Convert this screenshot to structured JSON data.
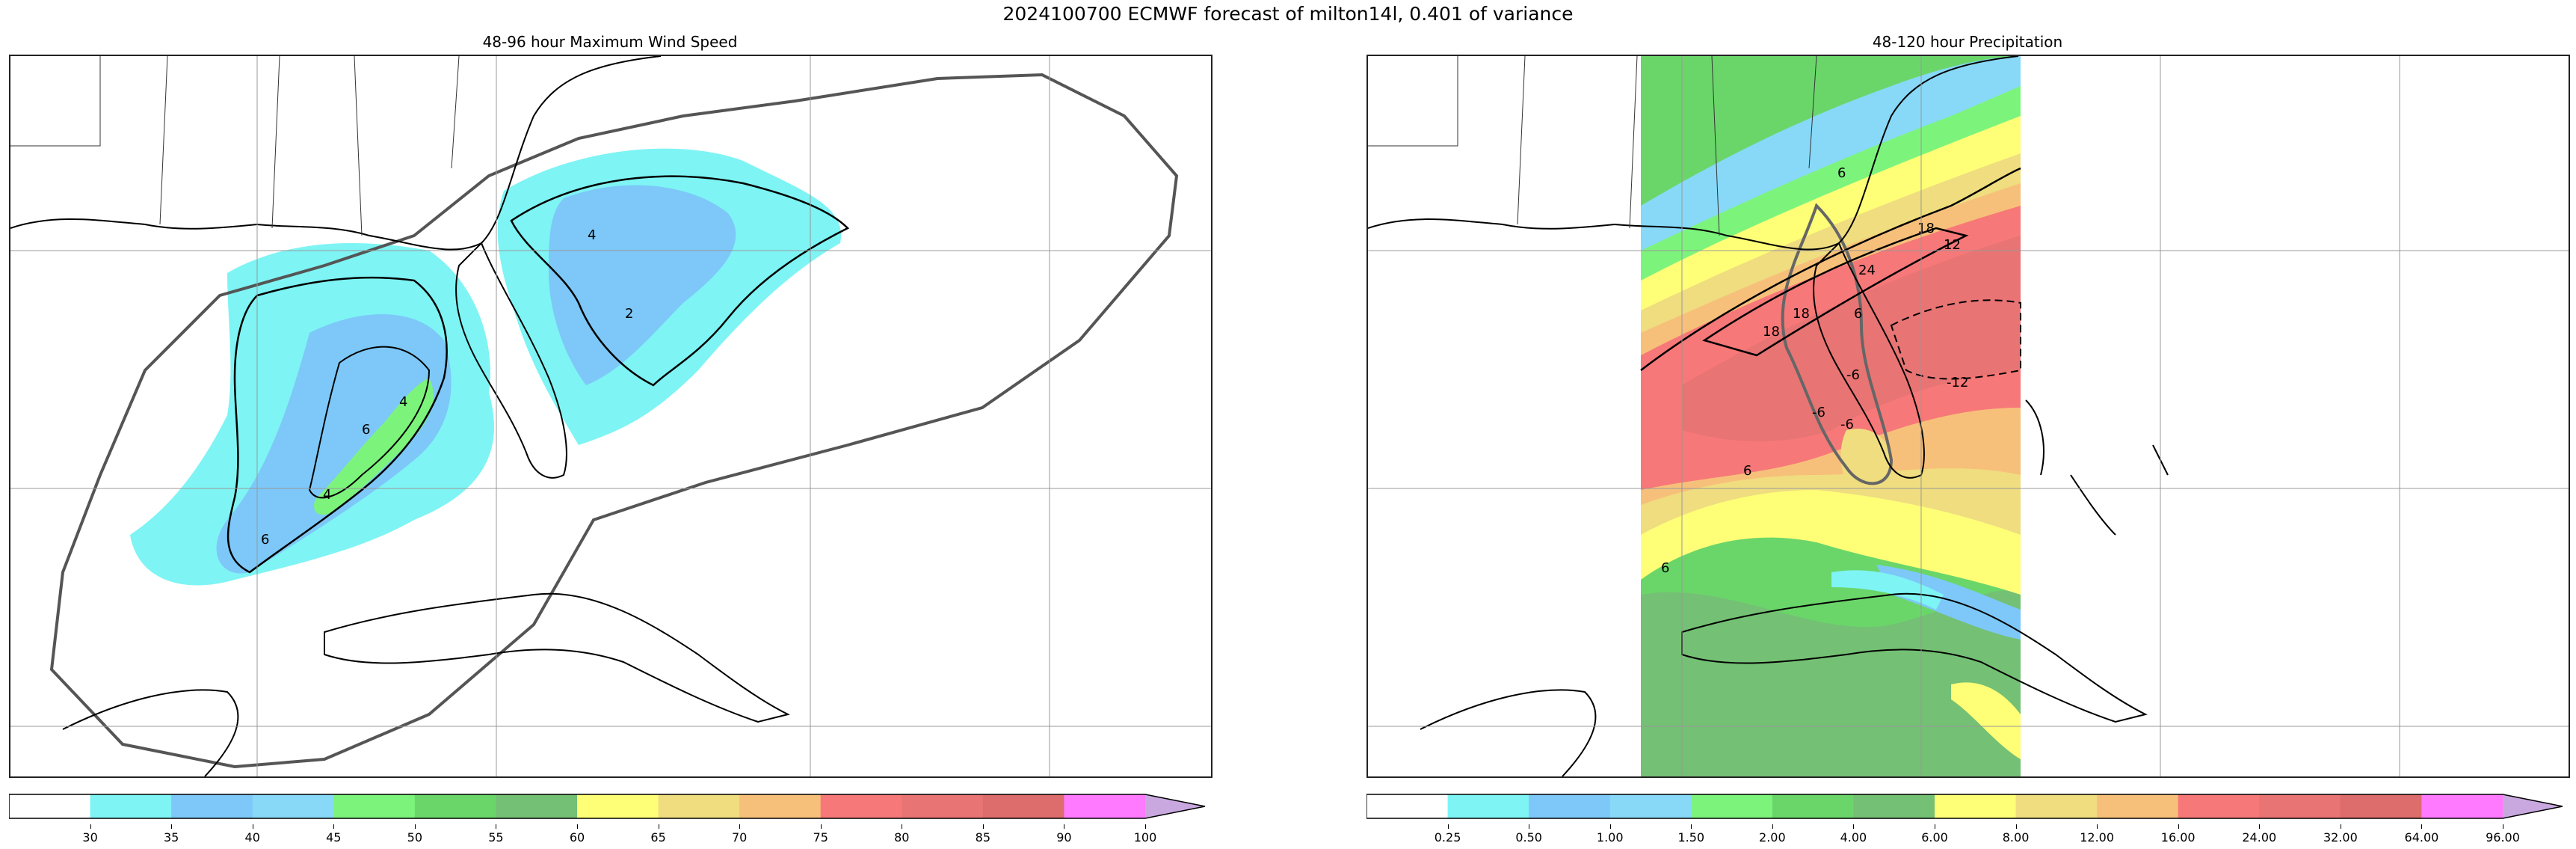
{
  "title": "2024100700 ECMWF forecast of milton14l, 0.401 of variance",
  "panels": {
    "left": {
      "title": "48-96 hour Maximum Wind Speed",
      "contour_labels": [
        "4",
        "2",
        "4",
        "6",
        "4",
        "6"
      ]
    },
    "right": {
      "title": "48-120 hour Precipitation",
      "contour_labels": [
        "6",
        "18",
        "12",
        "24",
        "18",
        "18",
        "6",
        "-12",
        "-6",
        "6",
        "-6",
        "6",
        "-6"
      ]
    }
  },
  "colorbars": {
    "wind": {
      "ticks": [
        "30",
        "35",
        "40",
        "45",
        "50",
        "55",
        "60",
        "65",
        "70",
        "75",
        "80",
        "85",
        "90",
        "100"
      ],
      "colors": [
        "#ffffff",
        "#7ef4f4",
        "#7dc8f8",
        "#87d9f7",
        "#7cf47c",
        "#6ad66a",
        "#74c074",
        "#ffff77",
        "#efdd80",
        "#f7c07a",
        "#f77878",
        "#e87474",
        "#dd6c6c",
        "#ff7aff",
        "#c9a8e0"
      ]
    },
    "precip": {
      "ticks": [
        "0.25",
        "0.50",
        "1.00",
        "1.50",
        "2.00",
        "4.00",
        "6.00",
        "8.00",
        "12.00",
        "16.00",
        "24.00",
        "32.00",
        "64.00",
        "96.00"
      ],
      "colors": [
        "#ffffff",
        "#7ef4f4",
        "#7dc8f8",
        "#87d9f7",
        "#7cf47c",
        "#6ad66a",
        "#74c074",
        "#ffff77",
        "#efdd80",
        "#f7c07a",
        "#f77878",
        "#e87474",
        "#dd6c6c",
        "#ff7aff",
        "#c9a8e0"
      ]
    }
  }
}
